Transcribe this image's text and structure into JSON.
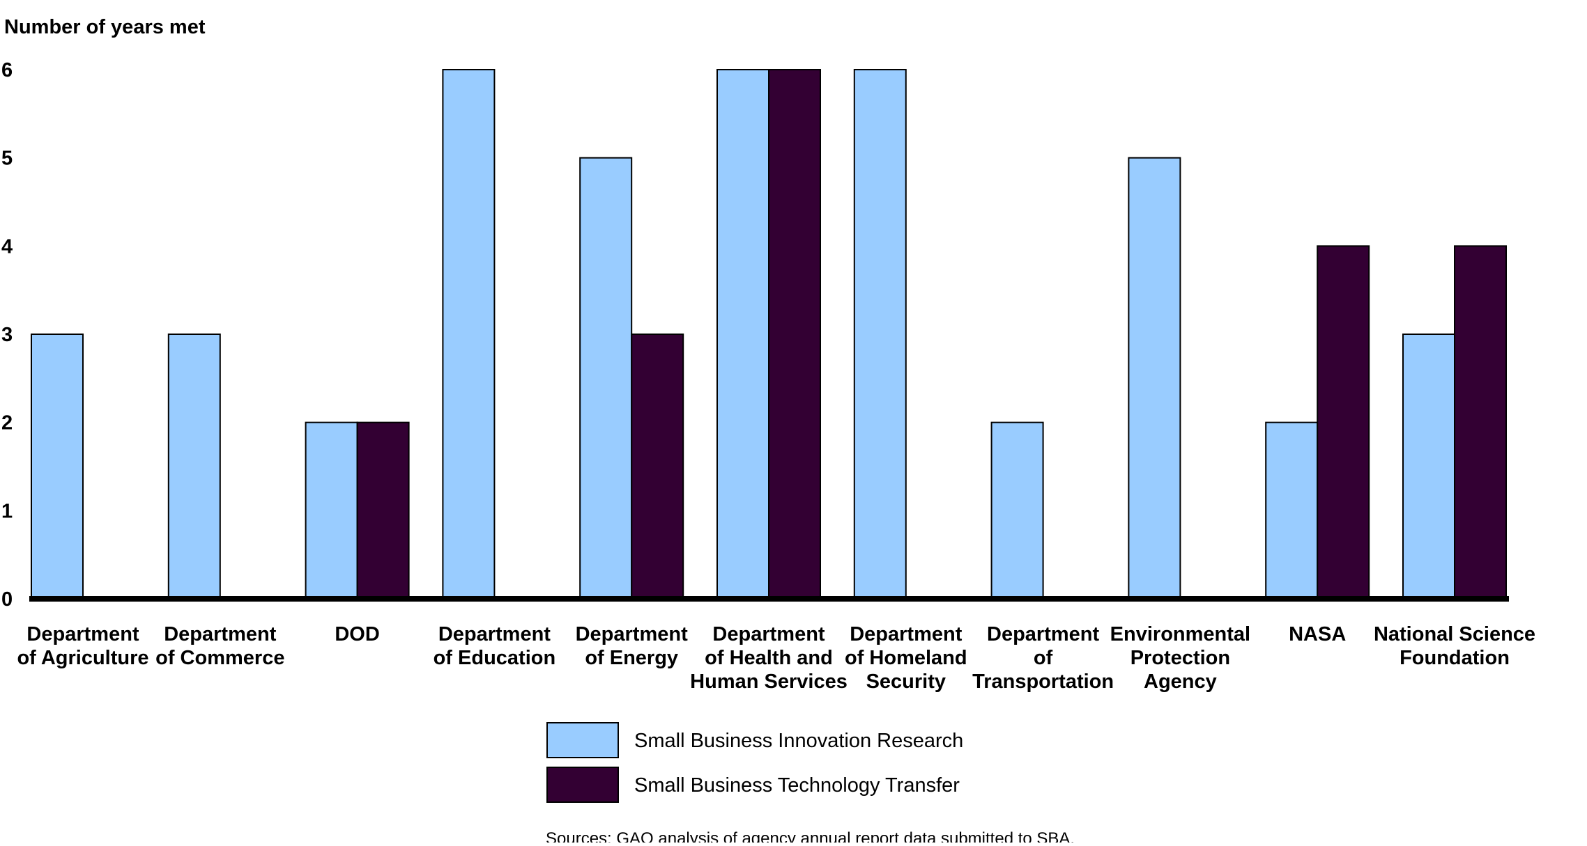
{
  "chart_data": {
    "type": "bar",
    "ylabel": "Number of years met",
    "ylim": [
      0,
      6
    ],
    "yticks": [
      "0",
      "1",
      "2",
      "3",
      "4",
      "5",
      "6"
    ],
    "categories": [
      [
        "Department",
        "of Agriculture"
      ],
      [
        "Department",
        "of Commerce"
      ],
      [
        "DOD"
      ],
      [
        "Department",
        "of Education"
      ],
      [
        "Department",
        "of Energy"
      ],
      [
        "Department",
        "of Health and",
        "Human Services"
      ],
      [
        "Department",
        "of Homeland",
        "Security"
      ],
      [
        "Department",
        "of",
        "Transportation"
      ],
      [
        "Environmental",
        "Protection",
        "Agency"
      ],
      [
        "NASA"
      ],
      [
        "National Science",
        "Foundation"
      ]
    ],
    "series": [
      {
        "name": "Small Business Innovation Research",
        "color": "#99ccff",
        "values": [
          3,
          3,
          2,
          6,
          5,
          6,
          6,
          2,
          5,
          2,
          3
        ]
      },
      {
        "name": "Small Business Technology Transfer",
        "color": "#330033",
        "values": [
          0,
          0,
          2,
          0,
          3,
          6,
          0,
          0,
          0,
          4,
          4
        ]
      }
    ],
    "legend_position": "bottom-center",
    "grid": false,
    "source": "Sources: GAO analysis of agency annual report data submitted to SBA."
  }
}
